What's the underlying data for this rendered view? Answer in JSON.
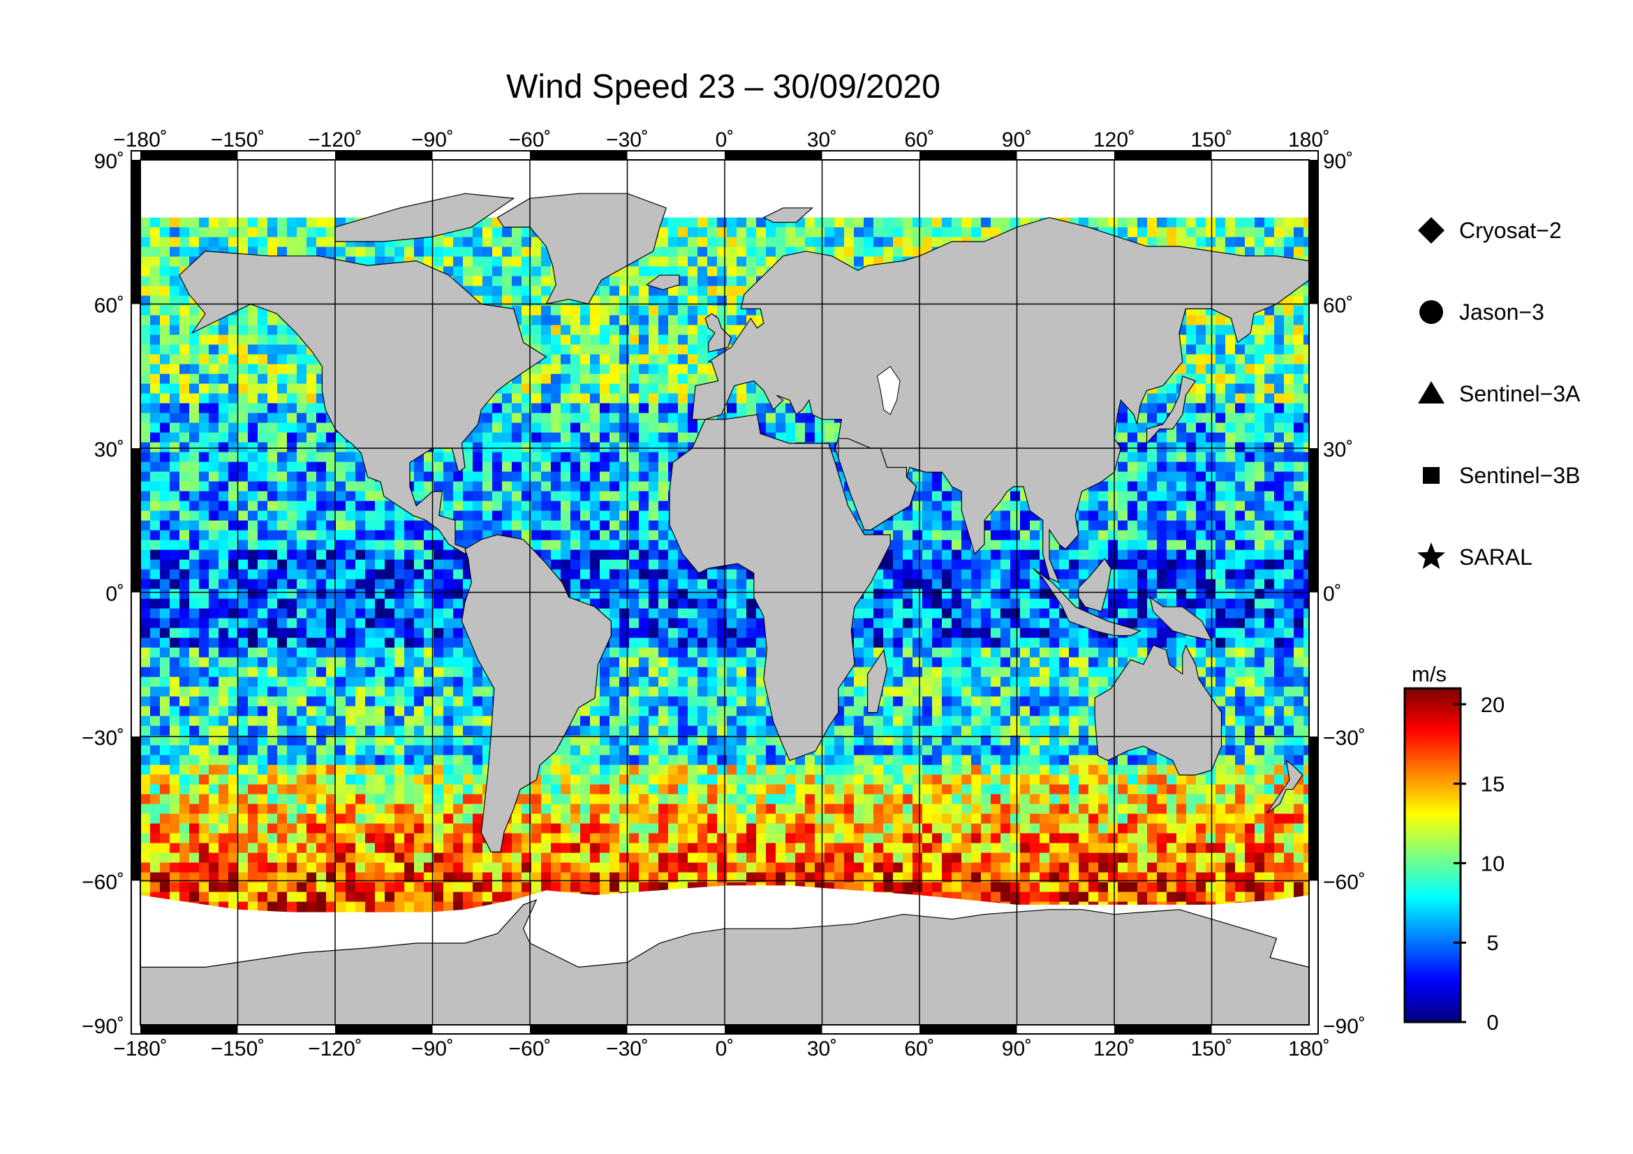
{
  "title": "Wind Speed 23 – 30/09/2020",
  "map": {
    "projection": "equirectangular",
    "lon_range": [
      -180,
      180
    ],
    "lat_range": [
      -90,
      90
    ],
    "grid": true,
    "lon_ticks": [
      {
        "value": -180,
        "label": "−180˚"
      },
      {
        "value": -150,
        "label": "−150˚"
      },
      {
        "value": -120,
        "label": "−120˚"
      },
      {
        "value": -90,
        "label": "−90˚"
      },
      {
        "value": -60,
        "label": "−60˚"
      },
      {
        "value": -30,
        "label": "−30˚"
      },
      {
        "value": 0,
        "label": "0˚"
      },
      {
        "value": 30,
        "label": "30˚"
      },
      {
        "value": 60,
        "label": "60˚"
      },
      {
        "value": 90,
        "label": "90˚"
      },
      {
        "value": 120,
        "label": "120˚"
      },
      {
        "value": 150,
        "label": "150˚"
      },
      {
        "value": 180,
        "label": "180˚"
      }
    ],
    "lat_ticks": [
      {
        "value": 90,
        "label": "90˚"
      },
      {
        "value": 60,
        "label": "60˚"
      },
      {
        "value": 30,
        "label": "30˚"
      },
      {
        "value": 0,
        "label": "0˚"
      },
      {
        "value": -30,
        "label": "−30˚"
      },
      {
        "value": -60,
        "label": "−60˚"
      },
      {
        "value": -90,
        "label": "−90˚"
      }
    ],
    "land_color": "#c0c0c0",
    "ice_color": "#ffffff"
  },
  "legend": {
    "position": "right",
    "items": [
      {
        "label": "Cryosat−2",
        "marker": "diamond"
      },
      {
        "label": "Jason−3",
        "marker": "circle"
      },
      {
        "label": "Sentinel−3A",
        "marker": "triangle"
      },
      {
        "label": "Sentinel−3B",
        "marker": "square"
      },
      {
        "label": "SARAL",
        "marker": "star"
      }
    ]
  },
  "colorbar": {
    "unit": "m/s",
    "range": [
      0,
      21
    ],
    "ticks": [
      {
        "value": 20,
        "label": "20"
      },
      {
        "value": 15,
        "label": "15"
      },
      {
        "value": 10,
        "label": "10"
      },
      {
        "value": 5,
        "label": "5"
      },
      {
        "value": 0,
        "label": "0"
      }
    ],
    "colormap": [
      "#00007f",
      "#0000ff",
      "#007fff",
      "#00ffff",
      "#7fff7f",
      "#ffff00",
      "#ff7f00",
      "#ff0000",
      "#7f0000"
    ]
  }
}
